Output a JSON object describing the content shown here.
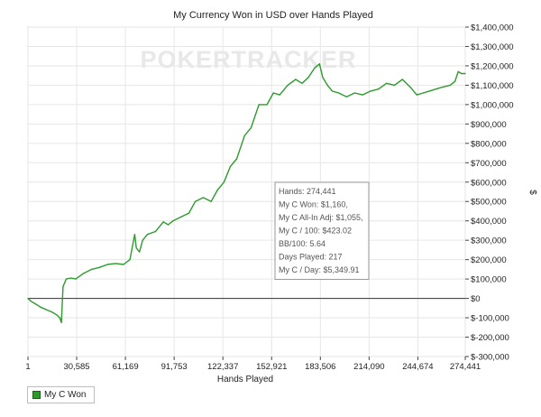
{
  "chart_data": {
    "type": "line",
    "title": "My Currency Won in USD over Hands Played",
    "xlabel": "Hands Played",
    "ylabel": "$",
    "watermark": "POKERTRACKER",
    "xlim": [
      1,
      274441
    ],
    "ylim": [
      -300000,
      1400000
    ],
    "x_ticks": [
      1,
      30585,
      61169,
      91753,
      122337,
      152921,
      183506,
      214090,
      244674,
      274441
    ],
    "x_tick_labels": [
      "1",
      "30,585",
      "61,169",
      "91,753",
      "122,337",
      "152,921",
      "183,506",
      "214,090",
      "244,674",
      "274,441"
    ],
    "y_ticks": [
      -300000,
      -200000,
      -100000,
      0,
      100000,
      200000,
      300000,
      400000,
      500000,
      600000,
      700000,
      800000,
      900000,
      1000000,
      1100000,
      1200000,
      1300000,
      1400000
    ],
    "y_tick_labels": [
      "$-300,000",
      "$-200,000",
      "$-100,000",
      "$0",
      "$100,000",
      "$200,000",
      "$300,000",
      "$400,000",
      "$500,000",
      "$600,000",
      "$700,000",
      "$800,000",
      "$900,000",
      "$1,000,000",
      "$1,100,000",
      "$1,200,000",
      "$1,300,000",
      "$1,400,000"
    ],
    "grid": true,
    "legend_position": "bottom-left",
    "series": [
      {
        "name": "My C Won",
        "color": "#2e9a2e",
        "x": [
          1,
          2000,
          5000,
          8000,
          12000,
          15000,
          18000,
          20000,
          21000,
          22000,
          24000,
          27000,
          30000,
          35000,
          40000,
          45000,
          50000,
          55000,
          60000,
          64000,
          67000,
          68000,
          70000,
          72000,
          75000,
          80000,
          85000,
          88000,
          91000,
          96000,
          101000,
          105000,
          110000,
          115000,
          119000,
          123000,
          127000,
          131000,
          136000,
          140000,
          145000,
          150000,
          154000,
          158000,
          163000,
          168000,
          172000,
          176000,
          180000,
          183000,
          185000,
          188000,
          191000,
          195000,
          200000,
          205000,
          210000,
          215000,
          220000,
          225000,
          230000,
          235000,
          240000,
          244000,
          248000,
          252000,
          256000,
          260000,
          265000,
          268000,
          270000,
          272000,
          274441
        ],
        "y": [
          0,
          -15000,
          -30000,
          -45000,
          -60000,
          -70000,
          -85000,
          -100000,
          -125000,
          60000,
          100000,
          105000,
          100000,
          130000,
          150000,
          160000,
          175000,
          180000,
          175000,
          200000,
          330000,
          260000,
          240000,
          300000,
          330000,
          345000,
          395000,
          380000,
          400000,
          420000,
          440000,
          500000,
          520000,
          500000,
          560000,
          600000,
          680000,
          720000,
          840000,
          880000,
          1000000,
          1000000,
          1060000,
          1050000,
          1100000,
          1130000,
          1110000,
          1140000,
          1190000,
          1210000,
          1140000,
          1100000,
          1070000,
          1060000,
          1040000,
          1060000,
          1050000,
          1070000,
          1080000,
          1110000,
          1100000,
          1130000,
          1090000,
          1050000,
          1060000,
          1070000,
          1080000,
          1090000,
          1100000,
          1120000,
          1170000,
          1160000,
          1160000
        ]
      }
    ],
    "tooltip": [
      "Hands: 274,441",
      "My C Won: $1,160,",
      "My C All-In Adj: $1,055,",
      "My C / 100: $423.02",
      "BB/100: 5.64",
      "Days Played: 217",
      "My C / Day: $5,349.91"
    ]
  },
  "legend": {
    "label": "My C Won",
    "swatch_color": "#2e9a2e"
  }
}
